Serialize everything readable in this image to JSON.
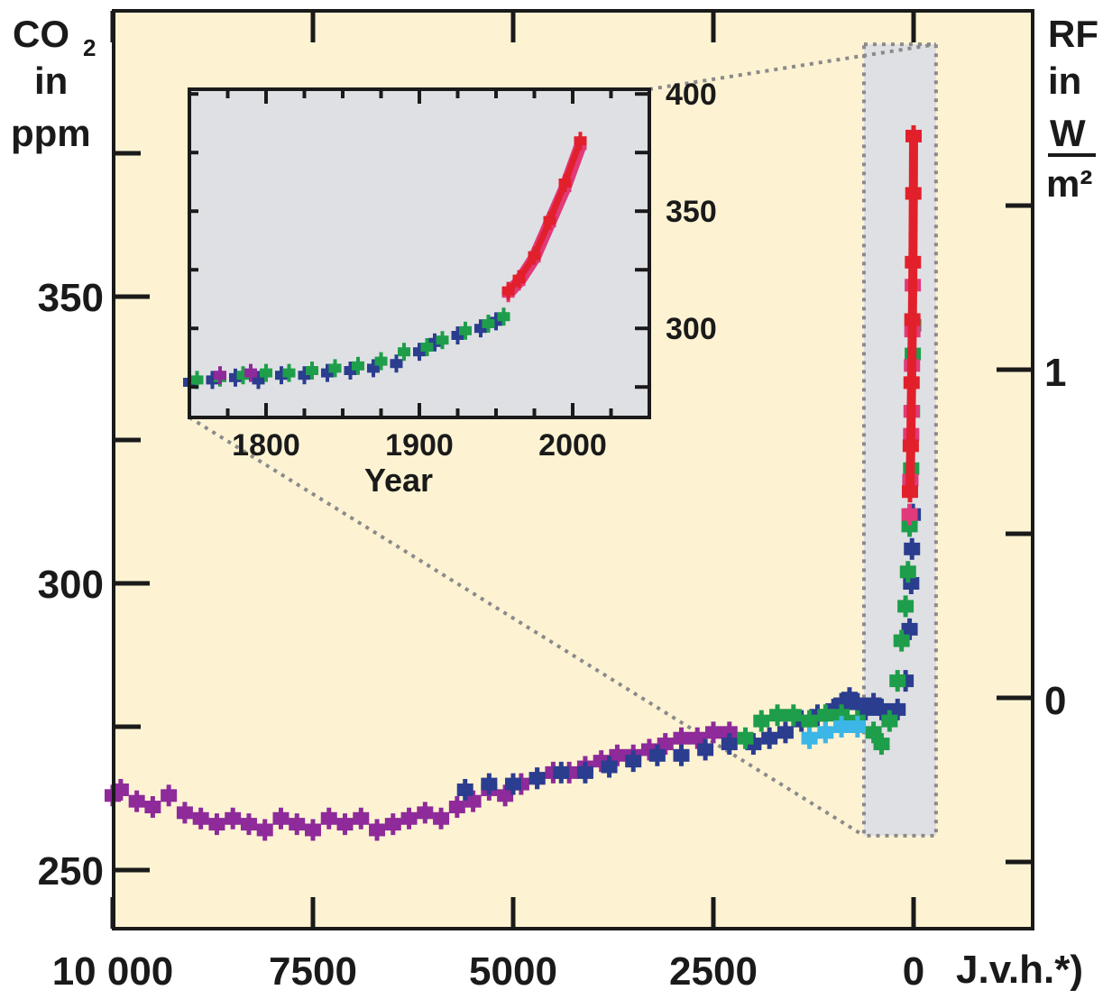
{
  "chart_data": [
    {
      "type": "scatter",
      "title": "",
      "xlabel": "J.v.h.*)",
      "y_axis_label": {
        "line1": "CO",
        "sub": "2",
        "line2": "in",
        "line3": "ppm"
      },
      "y2_axis_label": {
        "line1": "RF",
        "line2": "in",
        "num": "W",
        "den": "m²"
      },
      "x_range": [
        10000,
        0
      ],
      "x_reversed": true,
      "x_ticks": [
        10000,
        7500,
        5000,
        2500,
        0
      ],
      "x_tick_labels": [
        "10 000",
        "7500",
        "5000",
        "2500",
        "0"
      ],
      "ylim": [
        240,
        400
      ],
      "y_ticks": [
        250,
        300,
        350
      ],
      "y_tick_labels": [
        "250",
        "300",
        "350"
      ],
      "y_minor_ticks": [
        275,
        325,
        375
      ],
      "y2_ticks": [
        0,
        1
      ],
      "y2_tick_labels": [
        "0",
        "1"
      ],
      "y2_minor_ticks": [
        -0.5,
        0.5,
        1.5
      ],
      "grid": false,
      "background": "#fdf3d3",
      "zoom_box": {
        "x": [
          620,
          -280
        ],
        "y": [
          256,
          394
        ],
        "fill": "#dfe0e3"
      },
      "series": [
        {
          "color": "#8e2a9a",
          "points": [
            [
              10000,
              263
            ],
            [
              9900,
              264
            ],
            [
              9700,
              262
            ],
            [
              9500,
              261
            ],
            [
              9300,
              263
            ],
            [
              9100,
              260
            ],
            [
              8900,
              259
            ],
            [
              8700,
              258
            ],
            [
              8500,
              259
            ],
            [
              8300,
              258
            ],
            [
              8100,
              257
            ],
            [
              7900,
              259
            ],
            [
              7700,
              258
            ],
            [
              7500,
              257
            ],
            [
              7300,
              259
            ],
            [
              7100,
              258
            ],
            [
              6900,
              259
            ],
            [
              6700,
              257
            ],
            [
              6500,
              258
            ],
            [
              6300,
              259
            ],
            [
              6100,
              260
            ],
            [
              5900,
              259
            ],
            [
              5700,
              261
            ],
            [
              5500,
              262
            ],
            [
              5300,
              264
            ],
            [
              5100,
              263
            ],
            [
              4900,
              265
            ],
            [
              4700,
              266
            ],
            [
              4500,
              267
            ],
            [
              4300,
              267
            ],
            [
              4100,
              268
            ],
            [
              3900,
              269
            ],
            [
              3700,
              270
            ],
            [
              3500,
              270
            ],
            [
              3300,
              271
            ],
            [
              3100,
              272
            ],
            [
              2900,
              273
            ],
            [
              2700,
              273
            ],
            [
              2500,
              274
            ],
            [
              2300,
              274
            ]
          ]
        },
        {
          "color": "#2b3d8f",
          "points": [
            [
              5600,
              264
            ],
            [
              5300,
              265
            ],
            [
              5000,
              265
            ],
            [
              4700,
              266
            ],
            [
              4400,
              267
            ],
            [
              4100,
              267
            ],
            [
              3800,
              268
            ],
            [
              3500,
              269
            ],
            [
              3200,
              270
            ],
            [
              2900,
              270
            ],
            [
              2600,
              271
            ],
            [
              2300,
              272
            ],
            [
              2000,
              272
            ],
            [
              1800,
              273
            ],
            [
              1600,
              274
            ],
            [
              1400,
              276
            ],
            [
              1200,
              277
            ],
            [
              1000,
              278
            ],
            [
              900,
              279
            ],
            [
              800,
              280
            ],
            [
              700,
              279
            ],
            [
              600,
              278
            ],
            [
              500,
              279
            ],
            [
              400,
              278
            ],
            [
              300,
              277
            ],
            [
              200,
              278
            ],
            [
              100,
              283
            ],
            [
              50,
              292
            ],
            [
              30,
              300
            ],
            [
              20,
              306
            ],
            [
              10,
              312
            ]
          ]
        },
        {
          "color": "#1e9e4a",
          "points": [
            [
              2100,
              273
            ],
            [
              1900,
              276
            ],
            [
              1700,
              277
            ],
            [
              1500,
              277
            ],
            [
              1300,
              276
            ],
            [
              1100,
              277
            ],
            [
              900,
              277
            ],
            [
              700,
              276
            ],
            [
              500,
              274
            ],
            [
              400,
              272
            ],
            [
              300,
              276
            ],
            [
              200,
              283
            ],
            [
              150,
              290
            ],
            [
              100,
              296
            ],
            [
              70,
              302
            ],
            [
              50,
              310
            ],
            [
              30,
              320
            ],
            [
              20,
              330
            ],
            [
              10,
              340
            ],
            [
              5,
              345
            ]
          ]
        },
        {
          "color": "#3cb6e6",
          "points": [
            [
              1300,
              273
            ],
            [
              1100,
              274
            ],
            [
              900,
              275
            ],
            [
              700,
              275
            ]
          ]
        },
        {
          "color": "#e03a7a",
          "points": [
            [
              50,
              312
            ],
            [
              40,
              318
            ],
            [
              30,
              326
            ],
            [
              25,
              330
            ],
            [
              20,
              338
            ],
            [
              15,
              344
            ],
            [
              10,
              352
            ]
          ]
        },
        {
          "color": "#e2202c",
          "points": [
            [
              45,
              316
            ],
            [
              35,
              324
            ],
            [
              25,
              335
            ],
            [
              15,
              346
            ],
            [
              8,
              356
            ],
            [
              3,
              368
            ],
            [
              0,
              378
            ]
          ]
        }
      ]
    },
    {
      "type": "scatter",
      "title": "",
      "xlabel": "Year",
      "ylabel": "",
      "xlim": [
        1750,
        2050
      ],
      "ylim": [
        262,
        402
      ],
      "x_ticks": [
        1800,
        1900,
        2000
      ],
      "x_tick_labels": [
        "1800",
        "1900",
        "2000"
      ],
      "y_ticks": [
        300,
        350,
        400
      ],
      "y_tick_labels": [
        "300",
        "350",
        "400"
      ],
      "y_axis_side": "right",
      "grid": false,
      "background": "#dfe0e3",
      "series": [
        {
          "color": "#2b3d8f",
          "points": [
            [
              1750,
              277
            ],
            [
              1765,
              278
            ],
            [
              1780,
              279
            ],
            [
              1795,
              278
            ],
            [
              1810,
              280
            ],
            [
              1825,
              280
            ],
            [
              1840,
              281
            ],
            [
              1855,
              282
            ],
            [
              1870,
              283
            ],
            [
              1885,
              285
            ],
            [
              1900,
              290
            ],
            [
              1910,
              294
            ],
            [
              1925,
              297
            ],
            [
              1940,
              300
            ],
            [
              1950,
              303
            ]
          ]
        },
        {
          "color": "#1e9e4a",
          "points": [
            [
              1755,
              278
            ],
            [
              1770,
              279
            ],
            [
              1785,
              280
            ],
            [
              1800,
              281
            ],
            [
              1815,
              281
            ],
            [
              1830,
              282
            ],
            [
              1845,
              283
            ],
            [
              1860,
              284
            ],
            [
              1875,
              286
            ],
            [
              1890,
              290
            ],
            [
              1905,
              292
            ],
            [
              1915,
              295
            ],
            [
              1930,
              299
            ],
            [
              1945,
              302
            ],
            [
              1955,
              305
            ]
          ]
        },
        {
          "color": "#8e2a9a",
          "points": [
            [
              1770,
              280
            ],
            [
              1790,
              281
            ]
          ]
        },
        {
          "color": "#e03a7a",
          "points": [
            [
              1958,
              315
            ],
            [
              1965,
              320
            ],
            [
              1975,
              330
            ],
            [
              1985,
              345
            ],
            [
              1995,
              360
            ],
            [
              2005,
              378
            ]
          ]
        },
        {
          "color": "#e2202c",
          "points": [
            [
              1958,
              316
            ],
            [
              1965,
              321
            ],
            [
              1975,
              331
            ],
            [
              1985,
              346
            ],
            [
              1995,
              362
            ],
            [
              2005,
              380
            ]
          ]
        }
      ]
    }
  ]
}
